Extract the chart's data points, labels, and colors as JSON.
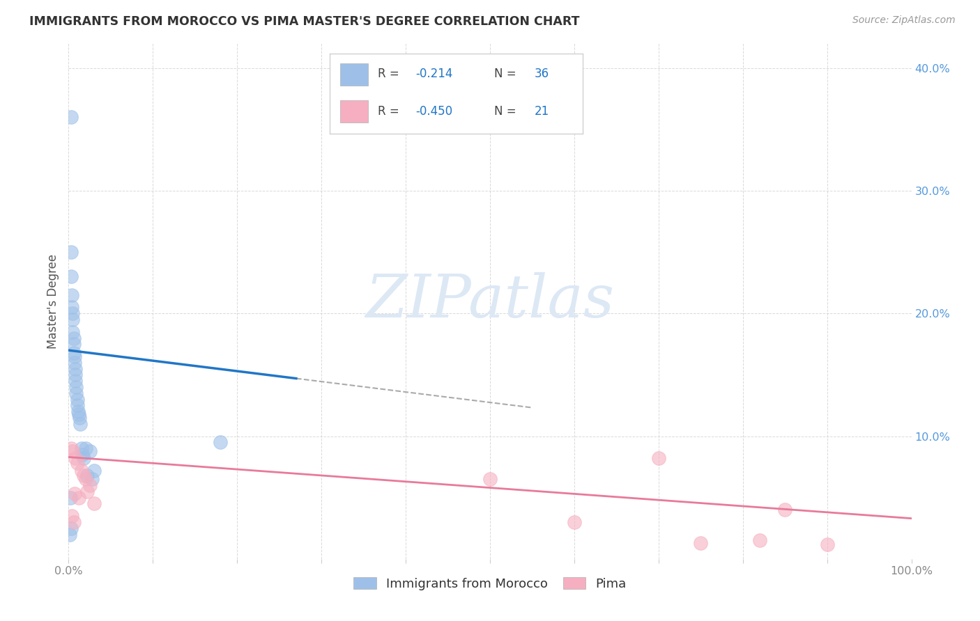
{
  "title": "IMMIGRANTS FROM MOROCCO VS PIMA MASTER'S DEGREE CORRELATION CHART",
  "source": "Source: ZipAtlas.com",
  "ylabel": "Master's Degree",
  "xlim": [
    0.0,
    1.0
  ],
  "ylim": [
    0.0,
    0.42
  ],
  "x_ticks": [
    0.0,
    0.1,
    0.2,
    0.3,
    0.4,
    0.5,
    0.6,
    0.7,
    0.8,
    0.9,
    1.0
  ],
  "x_tick_labels": [
    "0.0%",
    "",
    "",
    "",
    "",
    "",
    "",
    "",
    "",
    "",
    "100.0%"
  ],
  "y_ticks": [
    0.0,
    0.1,
    0.2,
    0.3,
    0.4
  ],
  "y_tick_labels_right": [
    "",
    "10.0%",
    "20.0%",
    "30.0%",
    "40.0%"
  ],
  "blue_scatter_x": [
    0.003,
    0.003,
    0.003,
    0.004,
    0.004,
    0.005,
    0.005,
    0.005,
    0.006,
    0.006,
    0.006,
    0.007,
    0.007,
    0.008,
    0.008,
    0.008,
    0.009,
    0.009,
    0.01,
    0.01,
    0.011,
    0.012,
    0.013,
    0.014,
    0.015,
    0.016,
    0.018,
    0.02,
    0.022,
    0.025,
    0.03,
    0.028,
    0.002,
    0.003,
    0.001,
    0.18
  ],
  "blue_scatter_y": [
    0.36,
    0.25,
    0.23,
    0.215,
    0.205,
    0.2,
    0.195,
    0.185,
    0.18,
    0.175,
    0.168,
    0.165,
    0.16,
    0.155,
    0.15,
    0.145,
    0.14,
    0.135,
    0.13,
    0.125,
    0.12,
    0.118,
    0.115,
    0.11,
    0.09,
    0.085,
    0.082,
    0.09,
    0.068,
    0.088,
    0.072,
    0.065,
    0.05,
    0.025,
    0.02,
    0.095
  ],
  "pink_scatter_x": [
    0.003,
    0.005,
    0.008,
    0.01,
    0.015,
    0.018,
    0.02,
    0.025,
    0.012,
    0.022,
    0.03,
    0.007,
    0.004,
    0.006,
    0.5,
    0.6,
    0.7,
    0.75,
    0.82,
    0.85,
    0.9
  ],
  "pink_scatter_y": [
    0.09,
    0.088,
    0.082,
    0.078,
    0.072,
    0.068,
    0.065,
    0.06,
    0.05,
    0.055,
    0.045,
    0.053,
    0.035,
    0.03,
    0.065,
    0.03,
    0.082,
    0.013,
    0.015,
    0.04,
    0.012
  ],
  "blue_line_x": [
    0.0,
    1.0
  ],
  "blue_line_y": [
    0.17,
    0.085
  ],
  "blue_line_solid_end": 0.27,
  "pink_line_x": [
    0.0,
    1.0
  ],
  "pink_line_y": [
    0.083,
    0.033
  ],
  "blue_color": "#9ec0e8",
  "pink_color": "#f5afc0",
  "blue_line_color": "#2176c7",
  "pink_line_color": "#e87a9a",
  "dash_color": "#aaaaaa",
  "bg_color": "#ffffff",
  "grid_color": "#d0d0d0",
  "title_color": "#333333",
  "source_color": "#999999",
  "ylabel_color": "#555555",
  "tick_color_right": "#5599dd",
  "tick_color_x": "#888888",
  "watermark_text": "ZIPatlas",
  "watermark_color": "#dde8f5",
  "legend_blue_r": "R =",
  "legend_blue_rval": "-0.214",
  "legend_blue_n": "N =",
  "legend_blue_nval": "36",
  "legend_pink_r": "R =",
  "legend_pink_rval": "-0.450",
  "legend_pink_n": "N =",
  "legend_pink_nval": "21",
  "bottom_legend_blue": "Immigrants from Morocco",
  "bottom_legend_pink": "Pima"
}
